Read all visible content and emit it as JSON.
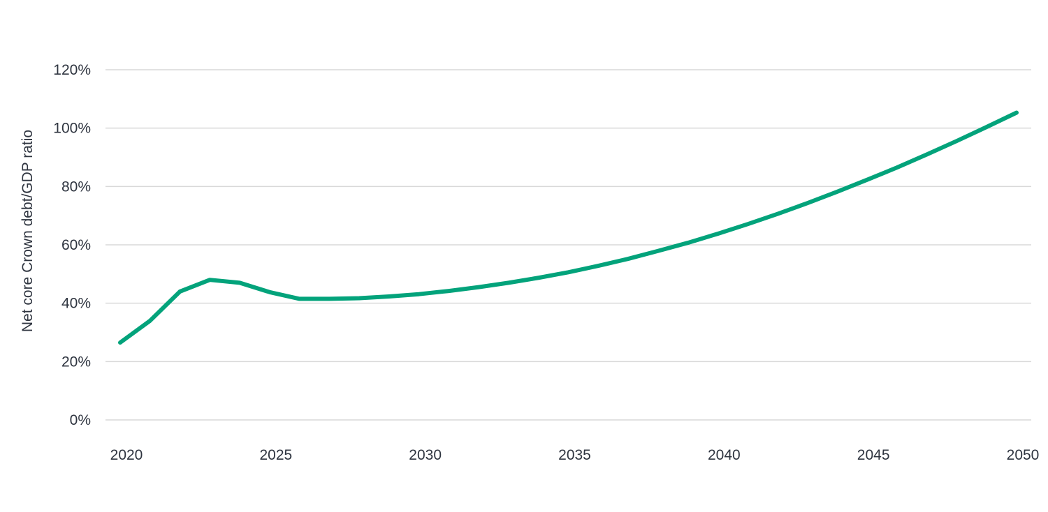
{
  "chart_data": {
    "type": "line",
    "title": "",
    "xlabel": "",
    "ylabel": "Net core Crown debt/GDP ratio",
    "xlim": [
      2020,
      2050
    ],
    "ylim": [
      0,
      120
    ],
    "grid": true,
    "legend": "none",
    "x_ticks": [
      2020,
      2025,
      2030,
      2035,
      2040,
      2045,
      2050
    ],
    "x_tick_labels": [
      "2020",
      "2025",
      "2030",
      "2035",
      "2040",
      "2045",
      "2050"
    ],
    "y_ticks": [
      0,
      20,
      40,
      60,
      80,
      100,
      120
    ],
    "y_tick_labels": [
      "0%",
      "20%",
      "40%",
      "60%",
      "80%",
      "100%",
      "120%"
    ],
    "x": [
      2020,
      2021,
      2022,
      2023,
      2024,
      2025,
      2026,
      2027,
      2028,
      2029,
      2030,
      2031,
      2032,
      2033,
      2034,
      2035,
      2036,
      2037,
      2038,
      2039,
      2040,
      2041,
      2042,
      2043,
      2044,
      2045,
      2046,
      2047,
      2048,
      2049,
      2050
    ],
    "series": [
      {
        "color": "#03a37b",
        "values": [
          26.5,
          34.0,
          44.0,
          48.0,
          47.0,
          43.8,
          41.5,
          41.5,
          41.7,
          42.3,
          43.1,
          44.2,
          45.5,
          47.0,
          48.7,
          50.6,
          52.8,
          55.2,
          57.9,
          60.7,
          63.8,
          67.1,
          70.6,
          74.3,
          78.2,
          82.3,
          86.5,
          91.0,
          95.6,
          100.4,
          105.3
        ]
      }
    ]
  }
}
